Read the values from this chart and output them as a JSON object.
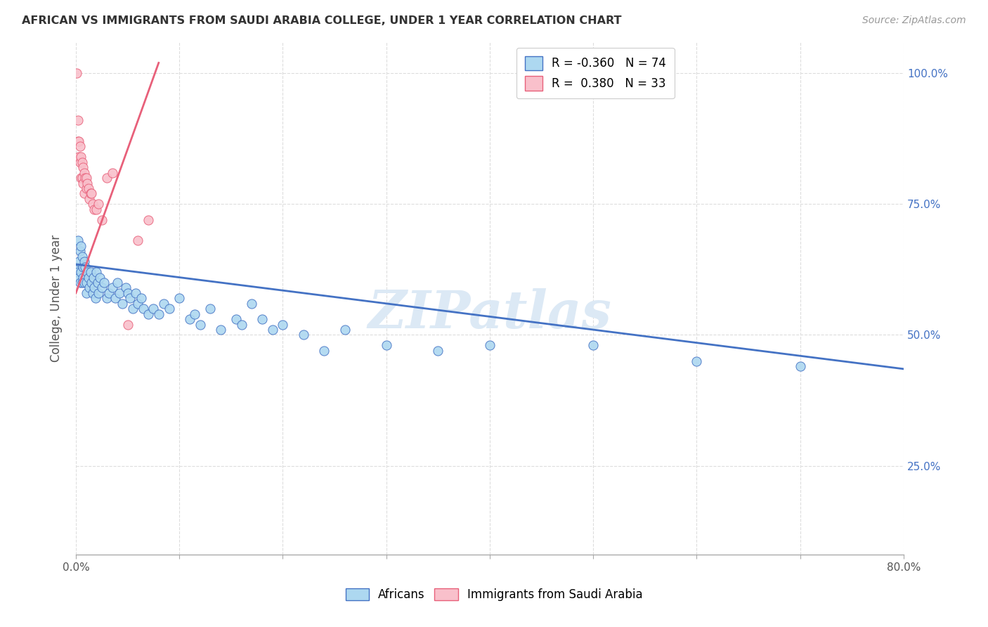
{
  "title": "AFRICAN VS IMMIGRANTS FROM SAUDI ARABIA COLLEGE, UNDER 1 YEAR CORRELATION CHART",
  "source": "Source: ZipAtlas.com",
  "ylabel": "College, Under 1 year",
  "legend_blue_r": "R = -0.360",
  "legend_blue_n": "N = 74",
  "legend_pink_r": "R =  0.380",
  "legend_pink_n": "N = 33",
  "legend_blue_label": "Africans",
  "legend_pink_label": "Immigrants from Saudi Arabia",
  "watermark": "ZIPatlas",
  "blue_color": "#ADD8F0",
  "pink_color": "#F9C0CB",
  "blue_line_color": "#4472C4",
  "pink_line_color": "#E8607A",
  "blue_scatter": [
    [
      0.001,
      0.63
    ],
    [
      0.002,
      0.68
    ],
    [
      0.002,
      0.62
    ],
    [
      0.003,
      0.64
    ],
    [
      0.003,
      0.61
    ],
    [
      0.004,
      0.66
    ],
    [
      0.004,
      0.6
    ],
    [
      0.005,
      0.67
    ],
    [
      0.005,
      0.62
    ],
    [
      0.006,
      0.65
    ],
    [
      0.006,
      0.6
    ],
    [
      0.007,
      0.63
    ],
    [
      0.007,
      0.61
    ],
    [
      0.008,
      0.64
    ],
    [
      0.008,
      0.6
    ],
    [
      0.009,
      0.63
    ],
    [
      0.01,
      0.6
    ],
    [
      0.01,
      0.58
    ],
    [
      0.011,
      0.62
    ],
    [
      0.012,
      0.61
    ],
    [
      0.013,
      0.59
    ],
    [
      0.014,
      0.62
    ],
    [
      0.015,
      0.6
    ],
    [
      0.016,
      0.58
    ],
    [
      0.017,
      0.61
    ],
    [
      0.018,
      0.59
    ],
    [
      0.019,
      0.57
    ],
    [
      0.02,
      0.62
    ],
    [
      0.021,
      0.6
    ],
    [
      0.022,
      0.58
    ],
    [
      0.023,
      0.61
    ],
    [
      0.025,
      0.59
    ],
    [
      0.027,
      0.6
    ],
    [
      0.03,
      0.57
    ],
    [
      0.032,
      0.58
    ],
    [
      0.035,
      0.59
    ],
    [
      0.038,
      0.57
    ],
    [
      0.04,
      0.6
    ],
    [
      0.042,
      0.58
    ],
    [
      0.045,
      0.56
    ],
    [
      0.048,
      0.59
    ],
    [
      0.05,
      0.58
    ],
    [
      0.052,
      0.57
    ],
    [
      0.055,
      0.55
    ],
    [
      0.058,
      0.58
    ],
    [
      0.06,
      0.56
    ],
    [
      0.063,
      0.57
    ],
    [
      0.065,
      0.55
    ],
    [
      0.07,
      0.54
    ],
    [
      0.075,
      0.55
    ],
    [
      0.08,
      0.54
    ],
    [
      0.085,
      0.56
    ],
    [
      0.09,
      0.55
    ],
    [
      0.1,
      0.57
    ],
    [
      0.11,
      0.53
    ],
    [
      0.115,
      0.54
    ],
    [
      0.12,
      0.52
    ],
    [
      0.13,
      0.55
    ],
    [
      0.14,
      0.51
    ],
    [
      0.155,
      0.53
    ],
    [
      0.16,
      0.52
    ],
    [
      0.17,
      0.56
    ],
    [
      0.18,
      0.53
    ],
    [
      0.19,
      0.51
    ],
    [
      0.2,
      0.52
    ],
    [
      0.22,
      0.5
    ],
    [
      0.24,
      0.47
    ],
    [
      0.26,
      0.51
    ],
    [
      0.3,
      0.48
    ],
    [
      0.35,
      0.47
    ],
    [
      0.4,
      0.48
    ],
    [
      0.5,
      0.48
    ],
    [
      0.6,
      0.45
    ],
    [
      0.7,
      0.44
    ]
  ],
  "blue_line": [
    [
      0.0,
      0.635
    ],
    [
      0.8,
      0.435
    ]
  ],
  "pink_scatter": [
    [
      0.001,
      1.0
    ],
    [
      0.002,
      0.91
    ],
    [
      0.002,
      0.87
    ],
    [
      0.003,
      0.87
    ],
    [
      0.003,
      0.84
    ],
    [
      0.004,
      0.86
    ],
    [
      0.004,
      0.83
    ],
    [
      0.005,
      0.84
    ],
    [
      0.005,
      0.8
    ],
    [
      0.006,
      0.83
    ],
    [
      0.006,
      0.8
    ],
    [
      0.007,
      0.82
    ],
    [
      0.007,
      0.79
    ],
    [
      0.008,
      0.81
    ],
    [
      0.008,
      0.77
    ],
    [
      0.009,
      0.8
    ],
    [
      0.01,
      0.8
    ],
    [
      0.01,
      0.78
    ],
    [
      0.011,
      0.79
    ],
    [
      0.012,
      0.78
    ],
    [
      0.013,
      0.76
    ],
    [
      0.014,
      0.77
    ],
    [
      0.015,
      0.77
    ],
    [
      0.016,
      0.75
    ],
    [
      0.018,
      0.74
    ],
    [
      0.02,
      0.74
    ],
    [
      0.022,
      0.75
    ],
    [
      0.025,
      0.72
    ],
    [
      0.03,
      0.8
    ],
    [
      0.035,
      0.81
    ],
    [
      0.05,
      0.52
    ],
    [
      0.06,
      0.68
    ],
    [
      0.07,
      0.72
    ]
  ],
  "pink_line": [
    [
      0.0,
      0.58
    ],
    [
      0.08,
      1.02
    ]
  ],
  "xlim": [
    0.0,
    0.8
  ],
  "ylim": [
    0.08,
    1.06
  ],
  "ytick_positions": [
    0.25,
    0.5,
    0.75,
    1.0
  ],
  "ytick_labels": [
    "25.0%",
    "50.0%",
    "75.0%",
    "100.0%"
  ],
  "xtick_minor_positions": [
    0.1,
    0.2,
    0.3,
    0.4,
    0.5,
    0.6,
    0.7
  ],
  "bg_color": "#FFFFFF",
  "grid_color": "#DDDDDD"
}
